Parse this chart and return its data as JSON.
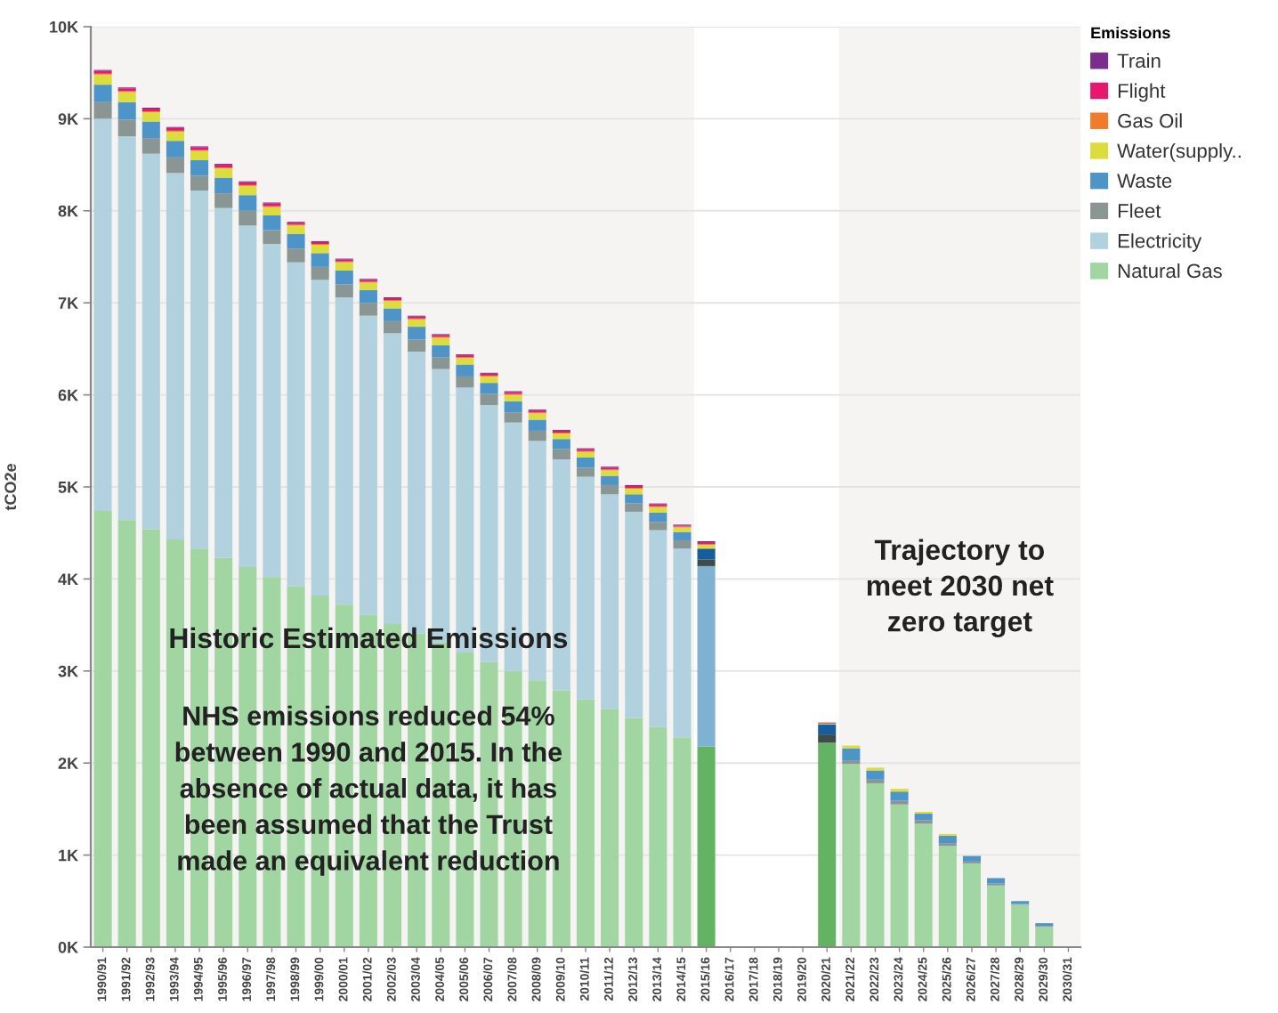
{
  "chart_data": {
    "type": "bar",
    "stacked": true,
    "categories": [
      "1990/91",
      "1991/92",
      "1992/93",
      "1993/94",
      "1994/95",
      "1995/96",
      "1996/97",
      "1997/98",
      "1998/99",
      "1999/00",
      "2000/01",
      "2001/02",
      "2002/03",
      "2003/04",
      "2004/05",
      "2005/06",
      "2006/07",
      "2007/08",
      "2008/09",
      "2009/10",
      "2010/11",
      "2011/12",
      "2012/13",
      "2013/14",
      "2014/15",
      "2015/16",
      "2016/17",
      "2017/18",
      "2018/19",
      "2019/20",
      "2020/21",
      "2021/22",
      "2022/23",
      "2023/24",
      "2024/25",
      "2025/26",
      "2026/27",
      "2027/28",
      "2028/29",
      "2029/30",
      "2030/31"
    ],
    "series": [
      {
        "name": "Natural Gas",
        "color": "#a1d5a1",
        "colors": [
          "#a1d5a1",
          "#a1d5a1",
          "#a1d5a1",
          "#a1d5a1",
          "#a1d5a1",
          "#a1d5a1",
          "#a1d5a1",
          "#a1d5a1",
          "#a1d5a1",
          "#a1d5a1",
          "#a1d5a1",
          "#a1d5a1",
          "#a1d5a1",
          "#a1d5a1",
          "#a1d5a1",
          "#a1d5a1",
          "#a1d5a1",
          "#a1d5a1",
          "#a1d5a1",
          "#a1d5a1",
          "#a1d5a1",
          "#a1d5a1",
          "#a1d5a1",
          "#a1d5a1",
          "#a1d5a1",
          "#62b462",
          "#a1d5a1",
          "#a1d5a1",
          "#a1d5a1",
          "#a1d5a1",
          "#62b462",
          "#a1d5a1",
          "#a1d5a1",
          "#a1d5a1",
          "#a1d5a1",
          "#a1d5a1",
          "#a1d5a1",
          "#a1d5a1",
          "#a1d5a1",
          "#a1d5a1",
          "#a1d5a1"
        ],
        "values": [
          4740,
          4640,
          4540,
          4430,
          4330,
          4230,
          4130,
          4020,
          3920,
          3820,
          3720,
          3610,
          3510,
          3410,
          3310,
          3200,
          3100,
          3000,
          2900,
          2790,
          2690,
          2590,
          2490,
          2390,
          2280,
          2180,
          null,
          null,
          null,
          null,
          2220,
          1990,
          1780,
          1550,
          1340,
          1100,
          910,
          670,
          460,
          220,
          null
        ]
      },
      {
        "name": "Electricity",
        "color": "#b1d1df",
        "colors": [
          "#b1d1df",
          "#b1d1df",
          "#b1d1df",
          "#b1d1df",
          "#b1d1df",
          "#b1d1df",
          "#b1d1df",
          "#b1d1df",
          "#b1d1df",
          "#b1d1df",
          "#b1d1df",
          "#b1d1df",
          "#b1d1df",
          "#b1d1df",
          "#b1d1df",
          "#b1d1df",
          "#b1d1df",
          "#b1d1df",
          "#b1d1df",
          "#b1d1df",
          "#b1d1df",
          "#b1d1df",
          "#b1d1df",
          "#b1d1df",
          "#b1d1df",
          "#7eb1d2",
          "#b1d1df",
          "#b1d1df",
          "#b1d1df",
          "#b1d1df",
          "#7eb1d2",
          "#b1d1df",
          "#b1d1df",
          "#b1d1df",
          "#b1d1df",
          "#b1d1df",
          "#b1d1df",
          "#b1d1df",
          "#b1d1df",
          "#b1d1df",
          "#b1d1df"
        ],
        "values": [
          4260,
          4170,
          4080,
          3980,
          3890,
          3800,
          3710,
          3620,
          3520,
          3430,
          3340,
          3250,
          3160,
          3060,
          2970,
          2880,
          2790,
          2700,
          2600,
          2510,
          2420,
          2330,
          2240,
          2140,
          2050,
          1960,
          null,
          null,
          null,
          null,
          null,
          null,
          null,
          null,
          null,
          null,
          null,
          null,
          null,
          null,
          null
        ]
      },
      {
        "name": "Fleet",
        "color": "#8a9693",
        "colors": [
          "#8a9693",
          "#8a9693",
          "#8a9693",
          "#8a9693",
          "#8a9693",
          "#8a9693",
          "#8a9693",
          "#8a9693",
          "#8a9693",
          "#8a9693",
          "#8a9693",
          "#8a9693",
          "#8a9693",
          "#8a9693",
          "#8a9693",
          "#8a9693",
          "#8a9693",
          "#8a9693",
          "#8a9693",
          "#8a9693",
          "#8a9693",
          "#8a9693",
          "#8a9693",
          "#8a9693",
          "#8a9693",
          "#3e4b47",
          "#8a9693",
          "#8a9693",
          "#8a9693",
          "#8a9693",
          "#3e4b47",
          "#8a9693",
          "#8a9693",
          "#8a9693",
          "#8a9693",
          "#8a9693",
          "#8a9693",
          "#8a9693",
          "#8a9693",
          "#8a9693",
          "#8a9693"
        ],
        "values": [
          180,
          180,
          170,
          170,
          160,
          160,
          160,
          150,
          150,
          140,
          140,
          140,
          130,
          130,
          130,
          120,
          120,
          110,
          110,
          110,
          100,
          100,
          90,
          90,
          90,
          70,
          null,
          null,
          null,
          null,
          90,
          40,
          40,
          40,
          40,
          30,
          20,
          20,
          10,
          10,
          null
        ]
      },
      {
        "name": "Waste",
        "color": "#4d94c9",
        "colors": [
          "#4d94c9",
          "#4d94c9",
          "#4d94c9",
          "#4d94c9",
          "#4d94c9",
          "#4d94c9",
          "#4d94c9",
          "#4d94c9",
          "#4d94c9",
          "#4d94c9",
          "#4d94c9",
          "#4d94c9",
          "#4d94c9",
          "#4d94c9",
          "#4d94c9",
          "#4d94c9",
          "#4d94c9",
          "#4d94c9",
          "#4d94c9",
          "#4d94c9",
          "#4d94c9",
          "#4d94c9",
          "#4d94c9",
          "#4d94c9",
          "#4d94c9",
          "#175d9c",
          "#4d94c9",
          "#4d94c9",
          "#4d94c9",
          "#4d94c9",
          "#175d9c",
          "#4d94c9",
          "#4d94c9",
          "#4d94c9",
          "#4d94c9",
          "#4d94c9",
          "#4d94c9",
          "#4d94c9",
          "#4d94c9",
          "#4d94c9",
          "#4d94c9"
        ],
        "values": [
          190,
          190,
          180,
          180,
          170,
          170,
          170,
          160,
          160,
          150,
          150,
          140,
          140,
          140,
          130,
          130,
          120,
          120,
          120,
          110,
          110,
          100,
          100,
          100,
          90,
          120,
          null,
          null,
          null,
          null,
          110,
          130,
          100,
          100,
          70,
          80,
          60,
          60,
          30,
          30,
          null
        ]
      },
      {
        "name": "Water(supply..",
        "color": "#dcdc3c",
        "values": [
          110,
          110,
          100,
          100,
          100,
          100,
          100,
          90,
          90,
          90,
          90,
          80,
          80,
          80,
          80,
          70,
          70,
          70,
          70,
          60,
          60,
          60,
          60,
          60,
          50,
          40,
          null,
          null,
          null,
          null,
          10,
          30,
          30,
          30,
          20,
          20,
          null,
          null,
          null,
          null,
          null
        ]
      },
      {
        "name": "Gas Oil",
        "color": "#f07b2b",
        "values": [
          10,
          10,
          10,
          10,
          10,
          10,
          10,
          10,
          10,
          10,
          10,
          10,
          10,
          10,
          10,
          10,
          10,
          10,
          10,
          10,
          10,
          10,
          10,
          10,
          10,
          10,
          null,
          null,
          null,
          null,
          null,
          null,
          null,
          null,
          null,
          null,
          null,
          null,
          null,
          null,
          null
        ]
      },
      {
        "name": "Flight",
        "color": "#e5186e",
        "values": [
          30,
          30,
          30,
          30,
          30,
          30,
          30,
          30,
          20,
          20,
          20,
          20,
          20,
          20,
          20,
          20,
          20,
          20,
          20,
          20,
          20,
          20,
          20,
          20,
          10,
          20,
          null,
          null,
          null,
          null,
          null,
          null,
          null,
          null,
          null,
          null,
          null,
          null,
          null,
          null,
          null
        ]
      },
      {
        "name": "Train",
        "color": "#7b2d8e",
        "values": [
          10,
          10,
          10,
          10,
          10,
          10,
          10,
          10,
          10,
          10,
          10,
          10,
          10,
          10,
          10,
          10,
          10,
          10,
          10,
          10,
          10,
          10,
          10,
          10,
          10,
          10,
          null,
          null,
          null,
          null,
          10,
          null,
          null,
          null,
          null,
          null,
          null,
          null,
          null,
          null,
          null
        ]
      }
    ],
    "ylabel": "tCO2e",
    "legend_title": "Emissions",
    "legend": "top right",
    "grid": "y",
    "ylim": [
      0,
      10000
    ],
    "yticks": [
      {
        "value": 0,
        "label": "0K"
      },
      {
        "value": 1000,
        "label": "1K"
      },
      {
        "value": 2000,
        "label": "2K"
      },
      {
        "value": 3000,
        "label": "3K"
      },
      {
        "value": 4000,
        "label": "4K"
      },
      {
        "value": 5000,
        "label": "5K"
      },
      {
        "value": 6000,
        "label": "6K"
      },
      {
        "value": 7000,
        "label": "7K"
      },
      {
        "value": 8000,
        "label": "8K"
      },
      {
        "value": 9000,
        "label": "9K"
      },
      {
        "value": 10000,
        "label": "10K"
      }
    ],
    "bands": [
      {
        "axis": "x",
        "from": "1990/91",
        "to": "2014/15",
        "label": "Historic Estimated Emissions",
        "color": "#f6f4f2"
      },
      {
        "axis": "x",
        "from": "2021/22",
        "to": "2030/31",
        "label": "Trajectory to\nmeet 2030 net\nzero target",
        "color": "#f6f4f2"
      }
    ],
    "annotations": [
      "NHS emissions reduced 54%\nbetween 1990 and 2015. In the\nabsence of actual data, it has\nbeen assumed that the Trust\nmade an equivalent reduction"
    ]
  }
}
